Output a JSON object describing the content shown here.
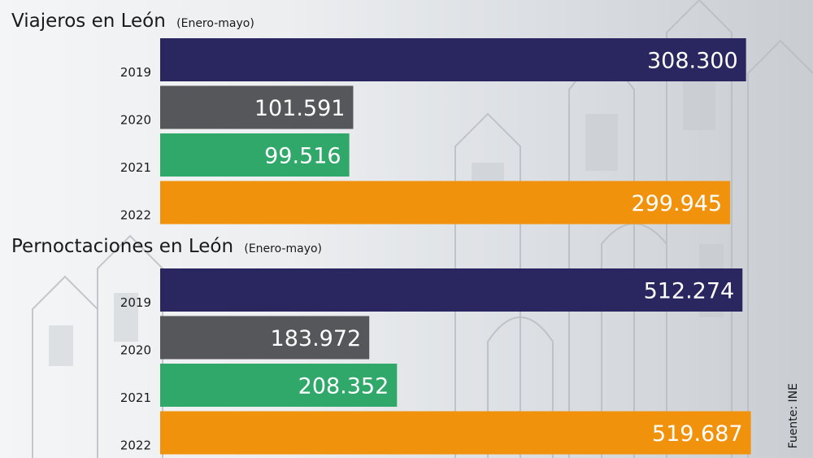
{
  "chart_data": [
    {
      "type": "bar",
      "orientation": "horizontal",
      "title": "Viajeros en León",
      "subtitle": "(Enero-mayo)",
      "categories": [
        "2019",
        "2020",
        "2021",
        "2022"
      ],
      "values": [
        308300,
        101591,
        99516,
        299945
      ],
      "value_labels": [
        "308.300",
        "101.591",
        "99.516",
        "299.945"
      ],
      "colors": [
        "#2a2660",
        "#55575a",
        "#2fa86a",
        "#f0920c"
      ],
      "xlim": [
        0,
        320000
      ],
      "grid": false,
      "legend": "none"
    },
    {
      "type": "bar",
      "orientation": "horizontal",
      "title": "Pernoctaciones en León",
      "subtitle": "(Enero-mayo)",
      "categories": [
        "2019",
        "2020",
        "2021",
        "2022"
      ],
      "values": [
        512274,
        183972,
        208352,
        519687
      ],
      "value_labels": [
        "512.274",
        "183.972",
        "208.352",
        "519.687"
      ],
      "colors": [
        "#2a2660",
        "#55575a",
        "#2fa86a",
        "#f0920c"
      ],
      "xlim": [
        0,
        535000
      ],
      "grid": false,
      "legend": "none"
    }
  ],
  "source": "Fuente: INE",
  "background": "cathedral-sketch-illustration"
}
